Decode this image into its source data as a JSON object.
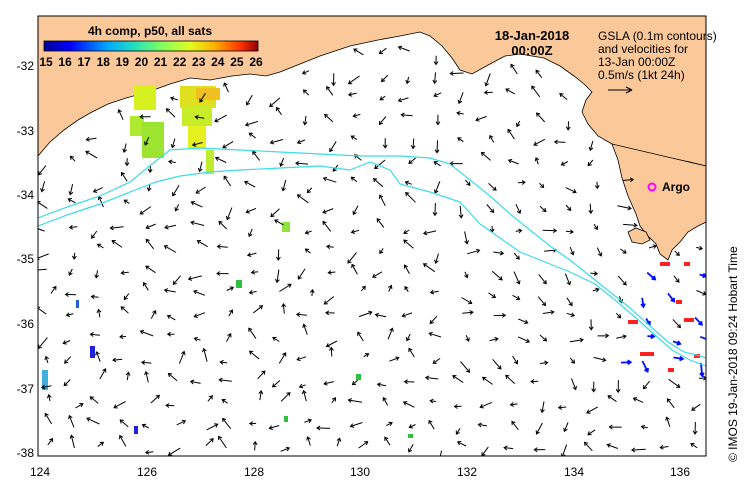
{
  "map": {
    "date": "18-Jan-2018",
    "time": "00:00Z",
    "colorbar_title": "4h comp, p50, all sats",
    "colorbar_ticks": [
      "15",
      "16",
      "17",
      "18",
      "19",
      "20",
      "21",
      "22",
      "23",
      "24",
      "25",
      "26"
    ],
    "legend_lines": [
      "GSLA (0.1m contours)",
      "and velocities for",
      "13-Jan 00:00Z",
      "0.5m/s (1kt 24h)"
    ],
    "argo_label": "Argo",
    "credit": "© IMOS 19-Jan-2018 09:24 Hobart Time",
    "lat_labels": [
      "-32",
      "-33",
      "-34",
      "-35",
      "-36",
      "-37",
      "-38"
    ],
    "lon_labels": [
      "124",
      "126",
      "128",
      "130",
      "132",
      "134",
      "136"
    ],
    "colors": {
      "land": "#fbc89a",
      "contour": "#3cdcea",
      "argo": "#ff00ff",
      "arrow": "#000000"
    }
  }
}
